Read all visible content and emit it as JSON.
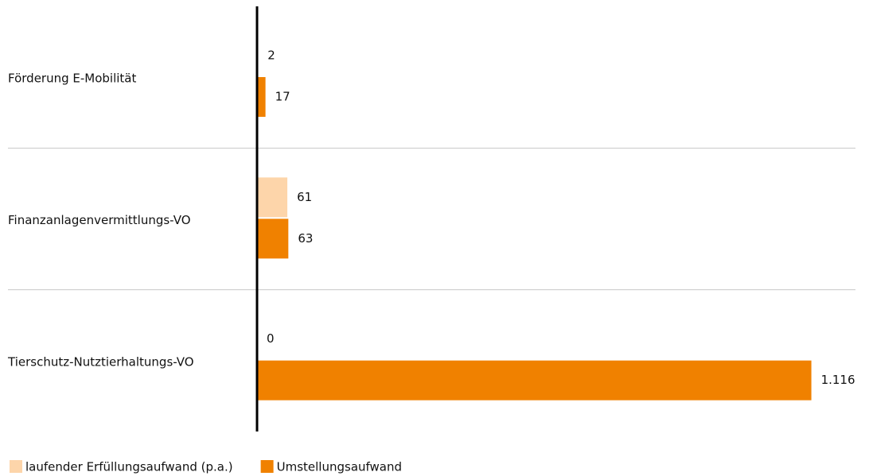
{
  "chart_data": {
    "type": "hbar",
    "categories": [
      "Förderung E-Mobilität",
      "Finanzanlagenvermittlungs-VO",
      "Tierschutz-Nutztierhaltungs-VO"
    ],
    "series": [
      {
        "name": "laufender Erfüllungsaufwand (p.a.)",
        "color": "#fdd5aa",
        "values": [
          2,
          61,
          0
        ],
        "value_labels": [
          "2",
          "61",
          "0"
        ]
      },
      {
        "name": "Umstellungsaufwand",
        "color": "#f08100",
        "values": [
          17,
          63,
          1116
        ],
        "value_labels": [
          "17",
          "63",
          "1.116"
        ]
      }
    ],
    "xlim": [
      0,
      1200
    ],
    "legend": "bottom-left"
  }
}
